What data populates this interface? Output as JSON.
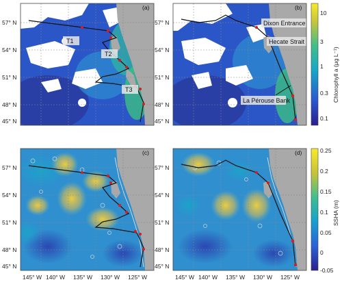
{
  "panels": [
    {
      "id": "a",
      "label": "(a)",
      "variable": "chlorophyll"
    },
    {
      "id": "b",
      "label": "(b)",
      "variable": "chlorophyll"
    },
    {
      "id": "c",
      "label": "(c)",
      "variable": "ssha"
    },
    {
      "id": "d",
      "label": "(d)",
      "variable": "ssha"
    }
  ],
  "lat_ticks": [
    "57° N",
    "54° N",
    "51° N",
    "48° N",
    "45° N"
  ],
  "lon_ticks": [
    "145° W",
    "140° W",
    "135° W",
    "130° W",
    "125° W"
  ],
  "transect_labels": {
    "t1": "T1",
    "t2": "T2",
    "t3": "T3"
  },
  "place_labels": {
    "dixon": "Dixon Entrance",
    "hecate": "Hecate Strait",
    "laperouse": "La Pérouse Bank"
  },
  "colorbar_chl": {
    "title": "Chlorophyll a (μg L⁻¹)",
    "ticks": [
      "10",
      "3",
      "1",
      "0.3",
      "0.1"
    ]
  },
  "colorbar_ssha": {
    "title": "SSHA (m)",
    "ticks": [
      "0.25",
      "0.2",
      "0.15",
      "0.1",
      "0.05",
      "0",
      "-0.05"
    ]
  },
  "colors": {
    "land": "#a9a9a9",
    "ocean_low": "#2a3fa8",
    "ocean_mid": "#1fa3c4",
    "ocean_high": "#f2e34a",
    "cloud": "#ffffff",
    "track": "#111111",
    "station": "#d21f1f"
  }
}
